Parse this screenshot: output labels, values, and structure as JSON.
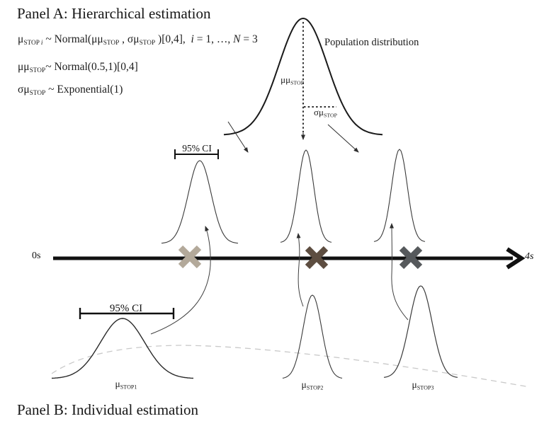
{
  "panel_a": {
    "title": "Panel A: Hierarchical estimation"
  },
  "panel_b": {
    "title": "Panel B: Individual estimation"
  },
  "formulas": {
    "line1": [
      {
        "t": "μ"
      },
      {
        "t": "STOP ",
        "c": "sub"
      },
      {
        "t": "i",
        "c": "subit"
      },
      {
        "t": " ~ Normal(μμ"
      },
      {
        "t": "STOP",
        "c": "sub"
      },
      {
        "t": " , σμ"
      },
      {
        "t": "STOP",
        "c": "sub"
      },
      {
        "t": " )[0,4],  "
      },
      {
        "t": "i",
        "c": "it"
      },
      {
        "t": " = 1, …, "
      },
      {
        "t": "N",
        "c": "it"
      },
      {
        "t": " = 3"
      }
    ],
    "line2": [
      {
        "t": "μμ"
      },
      {
        "t": "STOP",
        "c": "sub"
      },
      {
        "t": "~ Normal(0.5,1)[0,4]"
      }
    ],
    "line3": [
      {
        "t": "σμ"
      },
      {
        "t": "STOP",
        "c": "sub"
      },
      {
        "t": " ~ Exponential(1)"
      }
    ]
  },
  "population": {
    "label": "Population distribution",
    "mu_label": [
      {
        "t": "μμ"
      },
      {
        "t": "STOP",
        "c": "sub"
      }
    ],
    "sigma_label": [
      {
        "t": "σμ"
      },
      {
        "t": "STOP",
        "c": "sub"
      }
    ]
  },
  "axis": {
    "start": "0s",
    "end": "4s"
  },
  "ci_top": {
    "label": "95% CI"
  },
  "ci_bottom": {
    "label": "95% CI"
  },
  "individuals": [
    {
      "label": [
        {
          "t": "μ"
        },
        {
          "t": "STOP1",
          "c": "sub"
        }
      ],
      "x_color": "#b3a99a"
    },
    {
      "label": [
        {
          "t": "μ"
        },
        {
          "t": "STOP2",
          "c": "sub"
        }
      ],
      "x_color": "#5d4d40"
    },
    {
      "label": [
        {
          "t": "μ"
        },
        {
          "t": "STOP3",
          "c": "sub"
        }
      ],
      "x_color": "#56595c"
    }
  ],
  "colors": {
    "axis": "#111111",
    "curve_dark": "#1a1a1a",
    "curve_thin": "#3a3a3a",
    "dashed_gray": "#c9c9c9"
  }
}
